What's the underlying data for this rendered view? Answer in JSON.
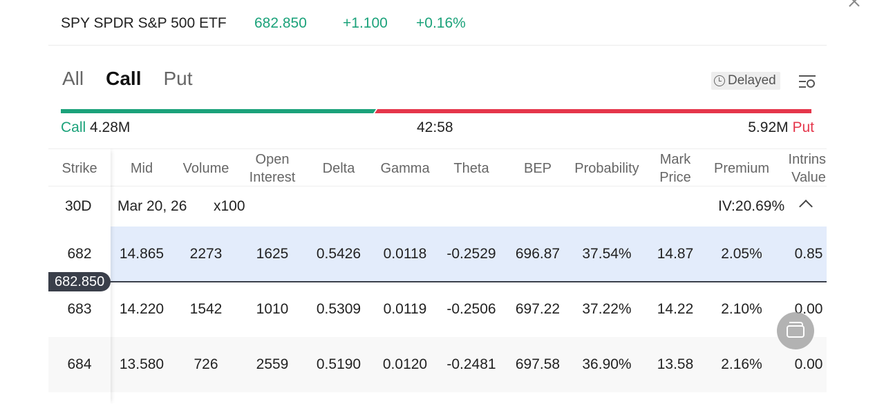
{
  "quote": {
    "name": "SPY SPDR S&P 500 ETF",
    "price": "682.850",
    "change": "+1.100",
    "change_pct": "+0.16%"
  },
  "tabs": [
    {
      "label": "All",
      "active": false
    },
    {
      "label": "Call",
      "active": true
    },
    {
      "label": "Put",
      "active": false
    }
  ],
  "delayed_label": "Delayed",
  "volume_ratio": {
    "call_label": "Call",
    "call_value": "4.28M",
    "ratio": "42:58",
    "put_value": "5.92M",
    "put_label": "Put",
    "call_fraction": 0.42
  },
  "columns": [
    "Strike",
    "Mid",
    "Volume",
    "Open Interest",
    "Delta",
    "Gamma",
    "Theta",
    "BEP",
    "Probability",
    "Mark Price",
    "Premium",
    "Intrinsi Value"
  ],
  "expiry": {
    "days": "30D",
    "date": "Mar 20, 26",
    "multiplier": "x100",
    "iv": "IV:20.69%"
  },
  "rows": [
    {
      "strike": "682",
      "mid": "14.865",
      "volume": "2273",
      "oi": "1625",
      "delta": "0.5426",
      "gamma": "0.0118",
      "theta": "-0.2529",
      "bep": "696.87",
      "prob": "37.54%",
      "mark": "14.87",
      "premium": "2.05%",
      "intrinsic": "0.85"
    },
    {
      "strike": "683",
      "mid": "14.220",
      "volume": "1542",
      "oi": "1010",
      "delta": "0.5309",
      "gamma": "0.0119",
      "theta": "-0.2506",
      "bep": "697.22",
      "prob": "37.22%",
      "mark": "14.22",
      "premium": "2.10%",
      "intrinsic": "0.00"
    },
    {
      "strike": "684",
      "mid": "13.580",
      "volume": "726",
      "oi": "2559",
      "delta": "0.5190",
      "gamma": "0.0120",
      "theta": "-0.2481",
      "bep": "697.58",
      "prob": "36.90%",
      "mark": "13.58",
      "premium": "2.16%",
      "intrinsic": "0.00"
    }
  ],
  "current_price_marker": "682.850",
  "colors": {
    "up_green": "#1ba27a",
    "down_red": "#e5364b",
    "highlight_row": "#e3ecfb",
    "marker_dark": "#3a3f4a"
  },
  "icons": [
    "close-icon",
    "clock-icon",
    "filter-settings-icon",
    "chevron-up-icon",
    "switch-window-icon"
  ]
}
